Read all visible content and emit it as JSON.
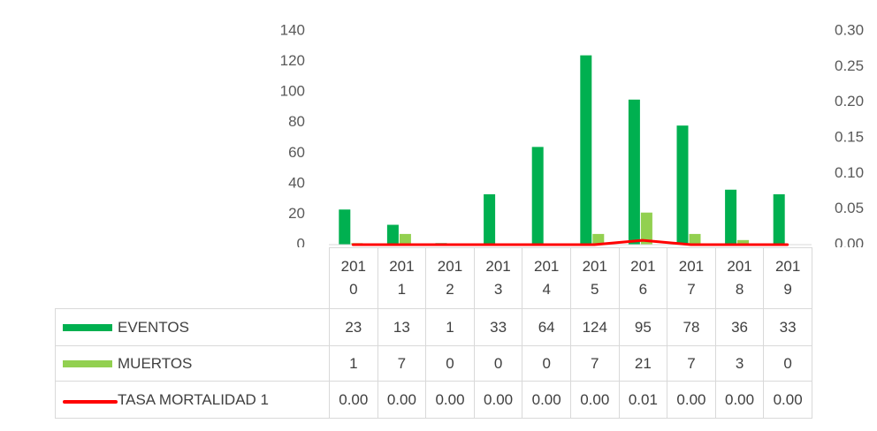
{
  "chart_data": {
    "type": "bar",
    "categories": [
      "2010",
      "2011",
      "2012",
      "2013",
      "2014",
      "2015",
      "2016",
      "2017",
      "2018",
      "2019"
    ],
    "series": [
      {
        "name": "EVENTOS",
        "color": "#00b050",
        "values": [
          23,
          13,
          1,
          33,
          64,
          124,
          95,
          78,
          36,
          33
        ]
      },
      {
        "name": "MUERTOS",
        "color": "#92d050",
        "values": [
          1,
          7,
          0,
          0,
          0,
          7,
          21,
          7,
          3,
          0
        ]
      },
      {
        "name": "TASA MORTALIDAD 1",
        "color": "#ff0000",
        "type": "line",
        "axis": "y2",
        "values": [
          0,
          0,
          0,
          0,
          0,
          0,
          0.006,
          0,
          0,
          0
        ],
        "value_labels": [
          "0.00",
          "0.00",
          "0.00",
          "0.00",
          "0.00",
          "0.00",
          "0.01",
          "0.00",
          "0.00",
          "0.00"
        ]
      }
    ],
    "ylim": [
      0,
      140
    ],
    "yticks": [
      0,
      20,
      40,
      60,
      80,
      100,
      120,
      140
    ],
    "y2lim": [
      0,
      0.3
    ],
    "y2ticks": [
      {
        "value": 0,
        "label": "0.00"
      },
      {
        "value": 0.05,
        "label": "0.05"
      },
      {
        "value": 0.1,
        "label": "0.10"
      },
      {
        "value": 0.15,
        "label": "0.15"
      },
      {
        "value": 0.2,
        "label": "0.20"
      },
      {
        "value": 0.25,
        "label": "0.25"
      },
      {
        "value": 0.3,
        "label": "0.30"
      }
    ],
    "grid": false,
    "data_table": true
  }
}
